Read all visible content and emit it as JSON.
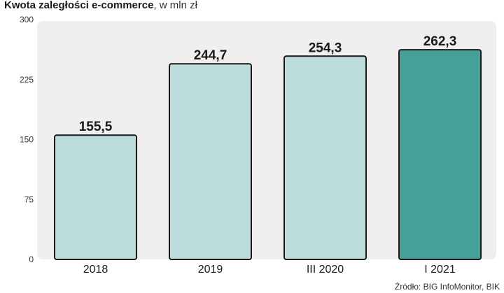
{
  "title": {
    "bold": "Kwota zaległości e-commerce",
    "rest": ", w mln zł"
  },
  "source": "Źródło: BIG InfoMonitor, BIK",
  "colors": {
    "plot_bg": "#f1eeef",
    "bar_light": "#bcdcdb",
    "bar_dark": "#45a197",
    "bar_edge": "#1a1a1a",
    "value_text": "#1a1a1a",
    "tick_text": "#333333"
  },
  "chart_data": {
    "type": "bar",
    "categories": [
      "2018",
      "2019",
      "III 2020",
      "I 2021"
    ],
    "values": [
      155.5,
      244.7,
      254.3,
      262.3
    ],
    "value_labels": [
      "155,5",
      "244,7",
      "254,3",
      "262,3"
    ],
    "highlight_index": 3,
    "ylim": [
      0,
      300
    ],
    "yticks": [
      0,
      75,
      150,
      225,
      300
    ],
    "ytick_labels": [
      "0",
      "75",
      "150",
      "225",
      "300"
    ],
    "grid": false
  }
}
